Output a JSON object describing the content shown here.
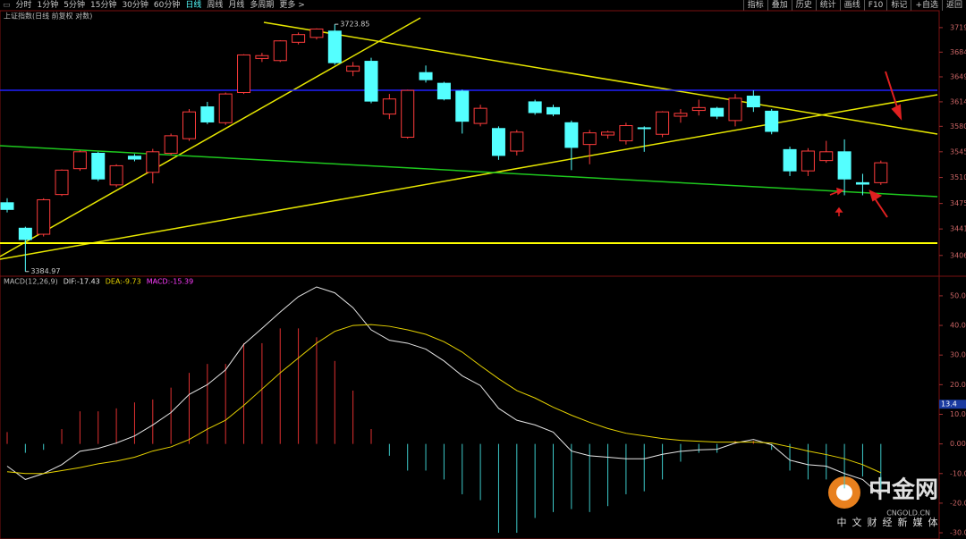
{
  "toolbar": {
    "left": [
      "分时",
      "1分钟",
      "5分钟",
      "15分钟",
      "30分钟",
      "60分钟",
      "日线",
      "周线",
      "月线",
      "多周期",
      "更多 >"
    ],
    "active_index": 6,
    "right": [
      "指标",
      "叠加",
      "历史",
      "统计",
      "画线",
      "F10",
      "标记",
      "+自选",
      "返回"
    ]
  },
  "watermark": {
    "brand": "中金网",
    "site": "CNGOLD.CN",
    "slogan": "中文财经新媒体"
  },
  "chart_data": [
    {
      "type": "candlestick",
      "title": "上证指数(日线 前复权 对数)",
      "log_scale": true,
      "up_color": "#ff3c3c",
      "down_color": "#54ffff",
      "open": [
        3476,
        3442,
        3434,
        3487,
        3522,
        3543,
        3500,
        3539,
        3517,
        3543,
        3563,
        3607,
        3585,
        3627,
        3675,
        3672,
        3698,
        3705,
        3714,
        3657,
        3671,
        3597,
        3565,
        3655,
        3640,
        3629,
        3584,
        3577,
        3546,
        3614,
        3606,
        3585,
        3555,
        3568,
        3560,
        3578,
        3569,
        3594,
        3602,
        3605,
        3588,
        3622,
        3601,
        3548,
        3519,
        3533,
        3545,
        3503,
        3503
      ],
      "high": [
        3482,
        3444,
        3482,
        3521,
        3547,
        3545,
        3528,
        3542,
        3549,
        3570,
        3604,
        3614,
        3627,
        3681,
        3683,
        3701,
        3712,
        3718,
        3723.85,
        3670,
        3676,
        3625,
        3631,
        3665,
        3642,
        3631,
        3610,
        3580,
        3575,
        3617,
        3610,
        3588,
        3575,
        3574,
        3585,
        3580,
        3601,
        3604,
        3617,
        3607,
        3625,
        3630,
        3604,
        3552,
        3550,
        3560,
        3562,
        3515,
        3533
      ],
      "low": [
        3463,
        3384.97,
        3431,
        3485,
        3519,
        3505,
        3497,
        3532,
        3502,
        3540,
        3560,
        3583,
        3582,
        3625,
        3670,
        3670,
        3695,
        3702,
        3666,
        3650,
        3612,
        3590,
        3563,
        3641,
        3616,
        3570,
        3580,
        3534,
        3540,
        3596,
        3594,
        3520,
        3528,
        3563,
        3555,
        3545,
        3565,
        3585,
        3595,
        3590,
        3580,
        3600,
        3569,
        3512,
        3512,
        3530,
        3486,
        3486,
        3500
      ],
      "close": [
        3467,
        3427,
        3480,
        3520,
        3545,
        3508,
        3526,
        3535,
        3545,
        3567,
        3600,
        3586,
        3625,
        3680,
        3679,
        3700,
        3709,
        3717,
        3669,
        3664,
        3615,
        3618,
        3630,
        3645,
        3618,
        3587,
        3605,
        3540,
        3572,
        3599,
        3597,
        3551,
        3571,
        3572,
        3581,
        3577,
        3600,
        3598,
        3606,
        3594,
        3619,
        3607,
        3573,
        3519,
        3546,
        3545,
        3508,
        3501,
        3530
      ],
      "ylim": [
        3380,
        3733
      ],
      "yticks": [
        3719,
        3684,
        3649,
        3614,
        3580,
        3545,
        3510,
        3475,
        3441,
        3406
      ]
    },
    {
      "type": "macd",
      "title": "MACD(12,26,9)",
      "series": [
        {
          "name": "DIF:-17.43",
          "color": "#e6e6e6",
          "values": [
            -7.5,
            -12,
            -10,
            -7,
            -2.5,
            -1.5,
            0.3,
            2.7,
            6.4,
            10.6,
            16.7,
            20,
            25,
            33.6,
            39,
            44.5,
            49.7,
            53,
            51,
            46,
            38.5,
            35,
            34,
            32,
            28,
            23,
            19.7,
            12,
            8,
            6.4,
            4,
            -2.4,
            -4,
            -4.5,
            -5,
            -5,
            -3.5,
            -2.5,
            -2,
            -1.8,
            0.3,
            1.5,
            -0.3,
            -5.5,
            -7,
            -7.5,
            -10,
            -12,
            -17.43
          ]
        },
        {
          "name": "DEA:-9.73",
          "color": "#e6d200",
          "values": [
            -9.4,
            -10,
            -10,
            -9,
            -8,
            -6.7,
            -5.8,
            -4.5,
            -2.4,
            -1,
            1.5,
            5,
            8,
            13,
            18.5,
            24,
            29,
            34,
            38,
            40,
            40.3,
            39.7,
            38.5,
            37,
            34.5,
            31,
            26.4,
            22,
            18,
            15.5,
            12.4,
            9.7,
            7.3,
            5.2,
            3.6,
            2.7,
            1.8,
            1.2,
            0.9,
            0.6,
            0.6,
            0.6,
            0.3,
            -1,
            -2.4,
            -3.6,
            -5,
            -7,
            -9.73
          ]
        }
      ],
      "histogram": {
        "name": "MACD:-15.39",
        "color": "#ff3cff",
        "up_color": "#e03030",
        "down_color": "#3cc8c8",
        "values": [
          4,
          -3,
          -2,
          5,
          11,
          11,
          12,
          14,
          15,
          19,
          24,
          27,
          27,
          34,
          34,
          39,
          39,
          36,
          28,
          18,
          5,
          -4,
          -9,
          -9,
          -12,
          -17,
          -19,
          -30,
          -30,
          -25,
          -23,
          -22,
          -23,
          -21,
          -17,
          -16,
          -12,
          -6,
          -3,
          -3,
          1,
          1,
          -2,
          -9,
          -12,
          -12,
          -15,
          -11,
          -15.39
        ]
      },
      "cursor_value": 13.4,
      "ylim": [
        -32.1,
        53.9
      ],
      "yticks": [
        {
          "value": 50,
          "label": "50.00"
        },
        {
          "value": 40,
          "label": "40.00"
        },
        {
          "value": 30,
          "label": "30.00"
        },
        {
          "value": 20,
          "label": "20.00"
        },
        {
          "value": 10,
          "label": "10.00"
        },
        {
          "value": 0,
          "label": "0.00"
        },
        {
          "value": -10,
          "label": "-10.00"
        },
        {
          "value": -20,
          "label": "-20.00"
        },
        {
          "value": -30,
          "label": "-30.00"
        }
      ]
    }
  ]
}
